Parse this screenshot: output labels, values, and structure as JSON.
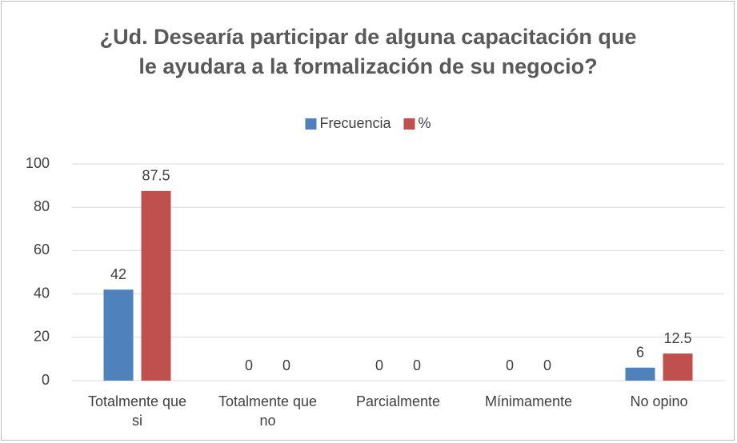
{
  "chart_data": {
    "type": "bar",
    "title": "¿Ud. Desearía participar de alguna capacitación que le ayudara a la formalización de su negocio?",
    "categories": [
      "Totalmente que si",
      "Totalmente que no",
      "Parcialmente",
      "Mínimamente",
      "No opino"
    ],
    "series": [
      {
        "name": "Frecuencia",
        "color": "#4f81bd",
        "values": [
          42,
          0,
          0,
          0,
          6
        ]
      },
      {
        "name": "%",
        "color": "#c0504d",
        "values": [
          87.5,
          0,
          0,
          0,
          12.5
        ]
      }
    ],
    "ylim": [
      0,
      100
    ],
    "yticks": [
      0,
      20,
      40,
      60,
      80,
      100
    ],
    "grid": true,
    "legend": "top"
  }
}
